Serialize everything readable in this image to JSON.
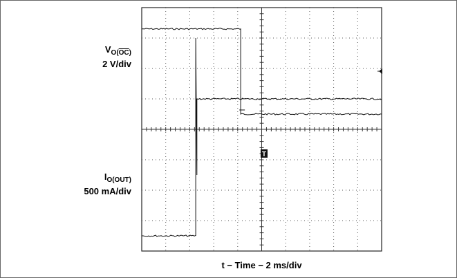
{
  "chart_data": {
    "type": "line",
    "title": "",
    "xlabel": "t − Time − 2 ms/div",
    "grid": true,
    "x_divisions": 10,
    "y_divisions": 8,
    "xlim": [
      0,
      20
    ],
    "time_unit": "ms",
    "trigger_marker": "T",
    "series": [
      {
        "channel": "V",
        "label_main": "V",
        "label_sub_pre": "O(",
        "label_sub_overline": "OC",
        "label_sub_post": ")",
        "scale": "2 V/div",
        "ylim": [
          -9,
          7
        ],
        "x": [
          0,
          8.25,
          8.25,
          20
        ],
        "y": [
          5.6,
          5.6,
          0,
          0
        ]
      },
      {
        "channel": "I",
        "label_main": "I",
        "label_sub": "O(OUT)",
        "scale": "500 mA/div",
        "ylim": [
          -250,
          3750
        ],
        "x": [
          0,
          4.5,
          4.5,
          4.6,
          4.6,
          20
        ],
        "y": [
          0,
          0,
          3250,
          1000,
          2250,
          2250
        ]
      }
    ]
  }
}
